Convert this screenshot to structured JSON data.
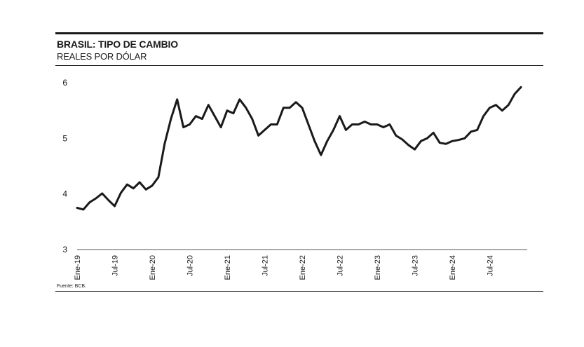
{
  "header": {
    "title": "BRASIL: TIPO DE CAMBIO",
    "subtitle": "REALES POR DÓLAR"
  },
  "footer": {
    "source": "Fuente: BCB."
  },
  "colors": {
    "line": "#1a1a1a",
    "axis": "#555555"
  },
  "chart_data": {
    "type": "line",
    "xlabel": "",
    "ylabel": "",
    "ylim": [
      3,
      6
    ],
    "yticks": [
      3,
      4,
      5,
      6
    ],
    "xlim": [
      "2019-01",
      "2025-01"
    ],
    "xticks": [
      "Ene-19",
      "Jul-19",
      "Ene-20",
      "Jul-20",
      "Ene-21",
      "Jul-21",
      "Ene-22",
      "Jul-22",
      "Ene-23",
      "Jul-23",
      "Ene-24",
      "Jul-24"
    ],
    "grid": false,
    "legend": "none",
    "series": [
      {
        "x": [
          "2019-01",
          "2019-02",
          "2019-03",
          "2019-04",
          "2019-05",
          "2019-06",
          "2019-07",
          "2019-08",
          "2019-09",
          "2019-10",
          "2019-11",
          "2019-12",
          "2020-01",
          "2020-02",
          "2020-03",
          "2020-04",
          "2020-05",
          "2020-06",
          "2020-07",
          "2020-08",
          "2020-09",
          "2020-10",
          "2020-11",
          "2020-12",
          "2021-01",
          "2021-02",
          "2021-03",
          "2021-04",
          "2021-05",
          "2021-06",
          "2021-07",
          "2021-08",
          "2021-09",
          "2021-10",
          "2021-11",
          "2021-12",
          "2022-01",
          "2022-02",
          "2022-03",
          "2022-04",
          "2022-05",
          "2022-06",
          "2022-07",
          "2022-08",
          "2022-09",
          "2022-10",
          "2022-11",
          "2022-12",
          "2023-01",
          "2023-02",
          "2023-03",
          "2023-04",
          "2023-05",
          "2023-06",
          "2023-07",
          "2023-08",
          "2023-09",
          "2023-10",
          "2023-11",
          "2023-12",
          "2024-01",
          "2024-02",
          "2024-03",
          "2024-04",
          "2024-05",
          "2024-06",
          "2024-07",
          "2024-08",
          "2024-09",
          "2024-10",
          "2024-11",
          "2024-12"
        ],
        "values": [
          3.75,
          3.72,
          3.85,
          3.92,
          4.01,
          3.89,
          3.78,
          4.02,
          4.17,
          4.1,
          4.21,
          4.08,
          4.15,
          4.3,
          4.9,
          5.35,
          5.7,
          5.2,
          5.25,
          5.4,
          5.35,
          5.6,
          5.4,
          5.2,
          5.5,
          5.45,
          5.7,
          5.55,
          5.35,
          5.05,
          5.15,
          5.25,
          5.25,
          5.55,
          5.55,
          5.65,
          5.55,
          5.25,
          4.95,
          4.7,
          4.95,
          5.15,
          5.4,
          5.15,
          5.25,
          5.25,
          5.3,
          5.25,
          5.25,
          5.2,
          5.25,
          5.05,
          4.98,
          4.88,
          4.8,
          4.95,
          5.0,
          5.1,
          4.92,
          4.9,
          4.95,
          4.97,
          5.0,
          5.12,
          5.15,
          5.4,
          5.55,
          5.6,
          5.5,
          5.6,
          5.8,
          5.92
        ]
      }
    ]
  }
}
